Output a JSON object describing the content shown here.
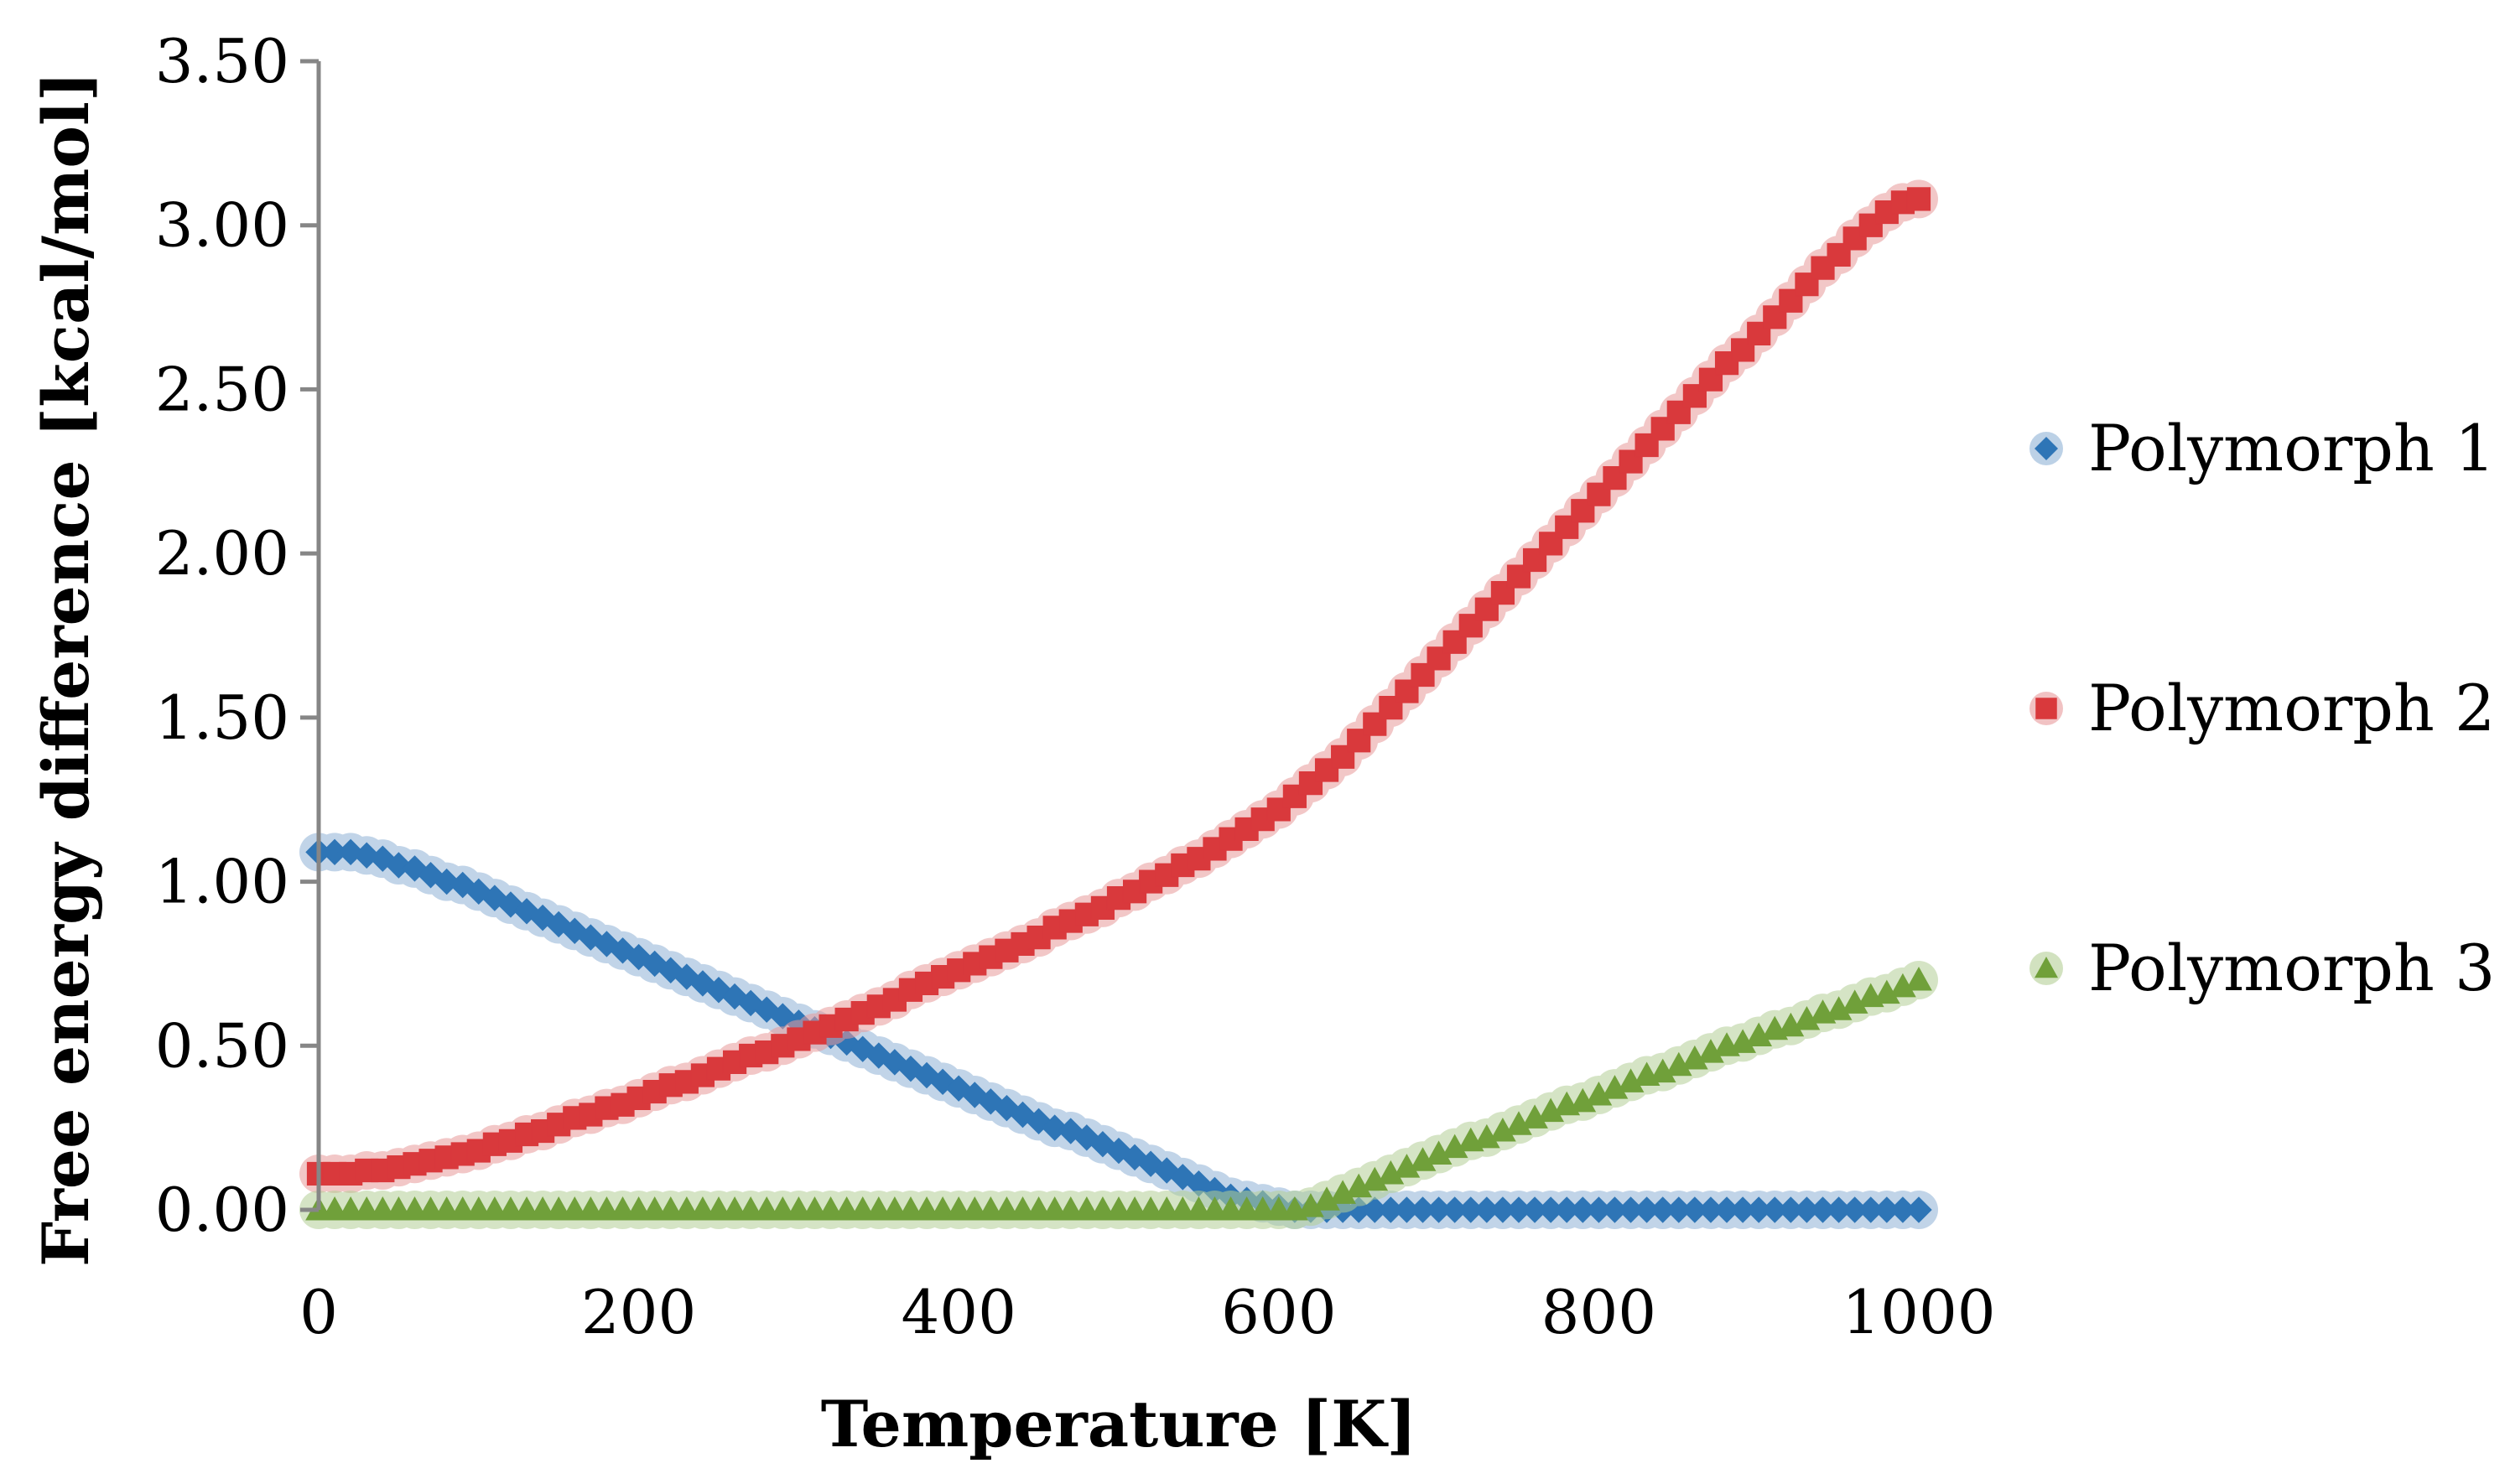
{
  "chart_data": {
    "type": "scatter",
    "title": "",
    "xlabel": "Temperature [K]",
    "ylabel": "Free energy difference [kcal/mol]",
    "xlim": [
      0,
      1000
    ],
    "ylim": [
      0,
      3.5
    ],
    "x_ticks": [
      "0",
      "200",
      "400",
      "600",
      "800",
      "1000"
    ],
    "y_ticks": [
      "0.00",
      "0.50",
      "1.00",
      "1.50",
      "2.00",
      "2.50",
      "3.00",
      "3.50"
    ],
    "grid": false,
    "legend_position": "right",
    "x": [
      0,
      10,
      20,
      30,
      40,
      50,
      60,
      70,
      80,
      90,
      100,
      110,
      120,
      130,
      140,
      150,
      160,
      170,
      180,
      190,
      200,
      210,
      220,
      230,
      240,
      250,
      260,
      270,
      280,
      290,
      300,
      310,
      320,
      330,
      340,
      350,
      360,
      370,
      380,
      390,
      400,
      410,
      420,
      430,
      440,
      450,
      460,
      470,
      480,
      490,
      500,
      510,
      520,
      530,
      540,
      550,
      560,
      570,
      580,
      590,
      600,
      610,
      620,
      630,
      640,
      650,
      660,
      670,
      680,
      690,
      700,
      710,
      720,
      730,
      740,
      750,
      760,
      770,
      780,
      790,
      800,
      810,
      820,
      830,
      840,
      850,
      860,
      870,
      880,
      890,
      900,
      910,
      920,
      930,
      940,
      950,
      960,
      970,
      980,
      990,
      1000
    ],
    "series": [
      {
        "name": "Polymorph 1",
        "color": "#2E75B6",
        "halo": "#8FB2D6",
        "marker": "diamond",
        "values": [
          1.09,
          1.09,
          1.09,
          1.08,
          1.07,
          1.05,
          1.04,
          1.02,
          1.0,
          0.99,
          0.97,
          0.95,
          0.93,
          0.91,
          0.89,
          0.87,
          0.85,
          0.83,
          0.81,
          0.79,
          0.77,
          0.75,
          0.73,
          0.71,
          0.69,
          0.67,
          0.65,
          0.63,
          0.61,
          0.59,
          0.57,
          0.55,
          0.53,
          0.51,
          0.49,
          0.47,
          0.45,
          0.43,
          0.41,
          0.39,
          0.37,
          0.35,
          0.33,
          0.31,
          0.29,
          0.27,
          0.25,
          0.24,
          0.22,
          0.2,
          0.18,
          0.16,
          0.14,
          0.12,
          0.1,
          0.08,
          0.06,
          0.04,
          0.03,
          0.02,
          0.01,
          0.0,
          0.0,
          0.0,
          0.0,
          0.0,
          0.0,
          0.0,
          0.0,
          0.0,
          0.0,
          0.0,
          0.0,
          0.0,
          0.0,
          0.0,
          0.0,
          0.0,
          0.0,
          0.0,
          0.0,
          0.0,
          0.0,
          0.0,
          0.0,
          0.0,
          0.0,
          0.0,
          0.0,
          0.0,
          0.0,
          0.0,
          0.0,
          0.0,
          0.0,
          0.0,
          0.0,
          0.0,
          0.0,
          0.0,
          0.0
        ]
      },
      {
        "name": "Polymorph 2",
        "color": "#D9393C",
        "halo": "#E89A9B",
        "marker": "square",
        "values": [
          0.11,
          0.11,
          0.11,
          0.12,
          0.12,
          0.13,
          0.14,
          0.15,
          0.16,
          0.17,
          0.18,
          0.2,
          0.21,
          0.23,
          0.24,
          0.26,
          0.28,
          0.29,
          0.31,
          0.32,
          0.34,
          0.36,
          0.38,
          0.39,
          0.41,
          0.43,
          0.45,
          0.47,
          0.48,
          0.5,
          0.52,
          0.54,
          0.56,
          0.58,
          0.6,
          0.62,
          0.64,
          0.67,
          0.69,
          0.71,
          0.73,
          0.75,
          0.77,
          0.79,
          0.81,
          0.83,
          0.86,
          0.88,
          0.9,
          0.92,
          0.95,
          0.97,
          1.0,
          1.02,
          1.05,
          1.07,
          1.1,
          1.13,
          1.16,
          1.19,
          1.22,
          1.26,
          1.3,
          1.34,
          1.38,
          1.43,
          1.48,
          1.53,
          1.58,
          1.63,
          1.68,
          1.73,
          1.78,
          1.83,
          1.88,
          1.93,
          1.98,
          2.03,
          2.08,
          2.13,
          2.18,
          2.23,
          2.28,
          2.33,
          2.38,
          2.43,
          2.48,
          2.53,
          2.58,
          2.62,
          2.67,
          2.72,
          2.77,
          2.82,
          2.87,
          2.91,
          2.96,
          3.0,
          3.04,
          3.07,
          3.08
        ]
      },
      {
        "name": "Polymorph 3",
        "color": "#70A03A",
        "halo": "#B4CF96",
        "marker": "triangle",
        "values": [
          0.0,
          0.0,
          0.0,
          0.0,
          0.0,
          0.0,
          0.0,
          0.0,
          0.0,
          0.0,
          0.0,
          0.0,
          0.0,
          0.0,
          0.0,
          0.0,
          0.0,
          0.0,
          0.0,
          0.0,
          0.0,
          0.0,
          0.0,
          0.0,
          0.0,
          0.0,
          0.0,
          0.0,
          0.0,
          0.0,
          0.0,
          0.0,
          0.0,
          0.0,
          0.0,
          0.0,
          0.0,
          0.0,
          0.0,
          0.0,
          0.0,
          0.0,
          0.0,
          0.0,
          0.0,
          0.0,
          0.0,
          0.0,
          0.0,
          0.0,
          0.0,
          0.0,
          0.0,
          0.0,
          0.0,
          0.0,
          0.0,
          0.0,
          0.0,
          0.0,
          0.0,
          0.0,
          0.01,
          0.03,
          0.05,
          0.07,
          0.09,
          0.11,
          0.13,
          0.15,
          0.17,
          0.19,
          0.21,
          0.22,
          0.24,
          0.26,
          0.28,
          0.3,
          0.32,
          0.33,
          0.35,
          0.37,
          0.39,
          0.41,
          0.42,
          0.44,
          0.46,
          0.48,
          0.5,
          0.51,
          0.53,
          0.55,
          0.56,
          0.58,
          0.6,
          0.61,
          0.63,
          0.65,
          0.66,
          0.68,
          0.7
        ]
      }
    ]
  }
}
